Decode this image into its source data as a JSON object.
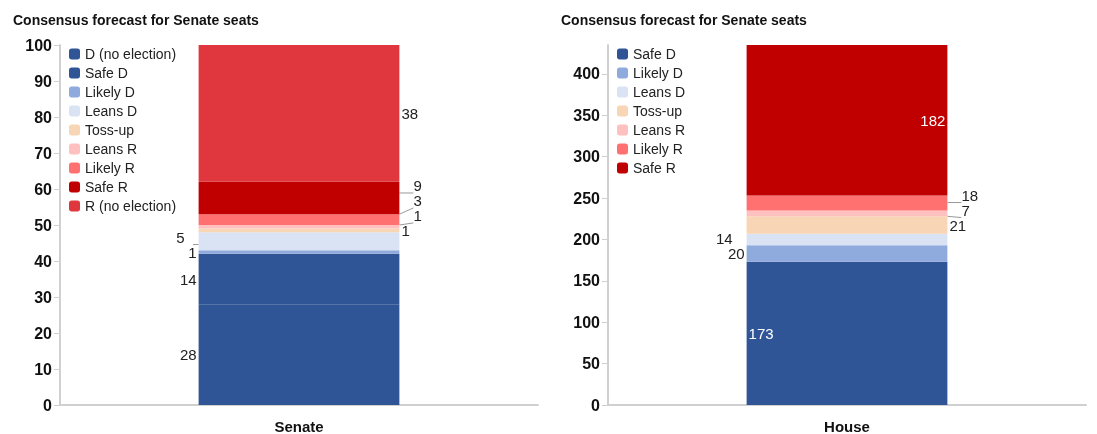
{
  "chart_data": [
    {
      "type": "bar",
      "title": "Consensus forecast for Senate seats",
      "categories": [
        "Senate"
      ],
      "stacked": true,
      "data_labels": true,
      "legend": "top left",
      "grid": false,
      "ylim": [
        0,
        100
      ],
      "yticks": [
        0,
        10,
        20,
        30,
        40,
        50,
        60,
        70,
        80,
        90,
        100
      ],
      "series": [
        {
          "name": "D (no election)",
          "color": "#2f5597",
          "values": [
            28
          ]
        },
        {
          "name": "Safe D",
          "color": "#2f5597",
          "values": [
            14
          ]
        },
        {
          "name": "Likely D",
          "color": "#8faadc",
          "values": [
            1
          ]
        },
        {
          "name": "Leans D",
          "color": "#dae3f3",
          "values": [
            5
          ]
        },
        {
          "name": "Toss-up",
          "color": "#f8d5b4",
          "values": [
            1
          ]
        },
        {
          "name": "Leans R",
          "color": "#ffc0c0",
          "values": [
            1
          ]
        },
        {
          "name": "Likely R",
          "color": "#ff7171",
          "values": [
            3
          ]
        },
        {
          "name": "Safe R",
          "color": "#c00000",
          "values": [
            9
          ]
        },
        {
          "name": "R (no election)",
          "color": "#e0363d",
          "values": [
            38
          ]
        }
      ]
    },
    {
      "type": "bar",
      "title": "Consensus forecast for Senate seats",
      "categories": [
        "House"
      ],
      "stacked": true,
      "data_labels": true,
      "legend": "top left",
      "grid": false,
      "ylim": [
        0,
        435
      ],
      "yticks": [
        0,
        50,
        100,
        150,
        200,
        250,
        300,
        350,
        400
      ],
      "series": [
        {
          "name": "Safe D",
          "color": "#2f5597",
          "values": [
            173
          ]
        },
        {
          "name": "Likely D",
          "color": "#8faadc",
          "values": [
            20
          ]
        },
        {
          "name": "Leans D",
          "color": "#dae3f3",
          "values": [
            14
          ]
        },
        {
          "name": "Toss-up",
          "color": "#f8d5b4",
          "values": [
            21
          ]
        },
        {
          "name": "Leans R",
          "color": "#ffc0c0",
          "values": [
            7
          ]
        },
        {
          "name": "Likely R",
          "color": "#ff7171",
          "values": [
            18
          ]
        },
        {
          "name": "Safe R",
          "color": "#c00000",
          "values": [
            182
          ]
        }
      ]
    }
  ]
}
